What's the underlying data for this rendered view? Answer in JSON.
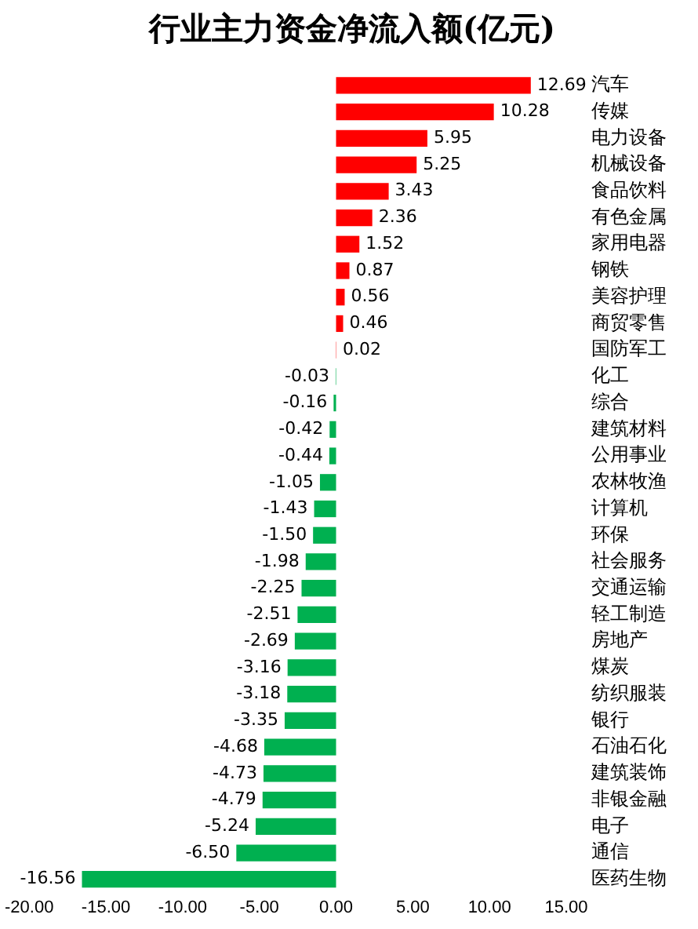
{
  "chart_data": {
    "type": "bar",
    "orientation": "horizontal",
    "title": "行业主力资金净流入额(亿元)",
    "categories": [
      "汽车",
      "传媒",
      "电力设备",
      "机械设备",
      "食品饮料",
      "有色金属",
      "家用电器",
      "钢铁",
      "美容护理",
      "商贸零售",
      "国防军工",
      "化工",
      "综合",
      "建筑材料",
      "公用事业",
      "农林牧渔",
      "计算机",
      "环保",
      "社会服务",
      "交通运输",
      "轻工制造",
      "房地产",
      "煤炭",
      "纺织服装",
      "银行",
      "石油石化",
      "建筑装饰",
      "非银金融",
      "电子",
      "通信",
      "医药生物"
    ],
    "values": [
      12.69,
      10.28,
      5.95,
      5.25,
      3.43,
      2.36,
      1.52,
      0.87,
      0.56,
      0.46,
      0.02,
      -0.03,
      -0.16,
      -0.42,
      -0.44,
      -1.05,
      -1.43,
      -1.5,
      -1.98,
      -2.25,
      -2.51,
      -2.69,
      -3.16,
      -3.18,
      -3.35,
      -4.68,
      -4.73,
      -4.79,
      -5.24,
      -6.5,
      -16.56
    ],
    "value_labels": [
      "12.69",
      "10.28",
      "5.95",
      "5.25",
      "3.43",
      "2.36",
      "1.52",
      "0.87",
      "0.56",
      "0.46",
      "0.02",
      "-0.03",
      "-0.16",
      "-0.42",
      "-0.44",
      "-1.05",
      "-1.43",
      "-1.50",
      "-1.98",
      "-2.25",
      "-2.51",
      "-2.69",
      "-3.16",
      "-3.18",
      "-3.35",
      "-4.68",
      "-4.73",
      "-4.79",
      "-5.24",
      "-6.50",
      "-16.56"
    ],
    "colors": [
      "#ff0000",
      "#ff0000",
      "#ff0000",
      "#ff0000",
      "#ff0000",
      "#ff0000",
      "#ff0000",
      "#ff0000",
      "#ff0000",
      "#ff0000",
      "#ff0000",
      "#00b050",
      "#00b050",
      "#00b050",
      "#00b050",
      "#00b050",
      "#00b050",
      "#00b050",
      "#00b050",
      "#00b050",
      "#00b050",
      "#00b050",
      "#00b050",
      "#00b050",
      "#00b050",
      "#00b050",
      "#00b050",
      "#00b050",
      "#00b050",
      "#00b050",
      "#00b050"
    ],
    "xlim": [
      -20,
      15
    ],
    "xticks": [
      {
        "value": -20,
        "label": "-20.00"
      },
      {
        "value": -15,
        "label": "-15.00"
      },
      {
        "value": -10,
        "label": "-10.00"
      },
      {
        "value": -5,
        "label": "-5.00"
      },
      {
        "value": 0,
        "label": "0.00"
      },
      {
        "value": 5,
        "label": "5.00"
      },
      {
        "value": 10,
        "label": "10.00"
      },
      {
        "value": 15,
        "label": "15.00"
      }
    ],
    "grid": false,
    "legend": false
  }
}
